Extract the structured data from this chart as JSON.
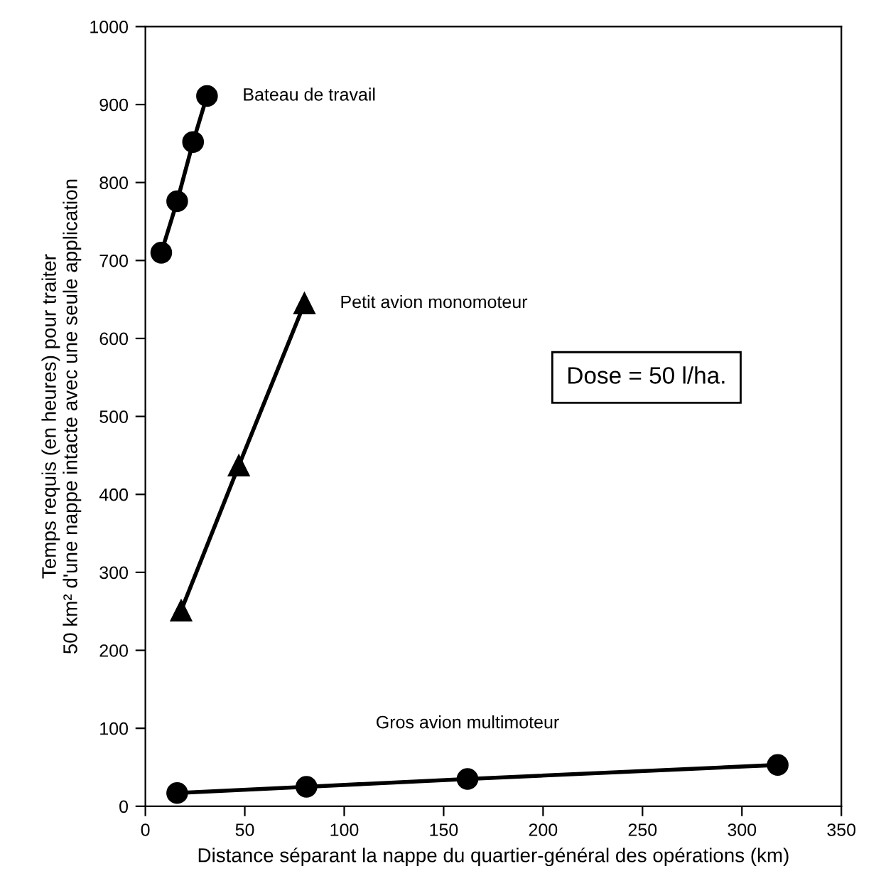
{
  "chart_data": {
    "type": "line",
    "xlabel": "Distance séparant la nappe du quartier-général des opérations (km)",
    "ylabel": "Temps requis (en heures) pour traiter\n50 km² d'une nappe intacte avec une seule application",
    "series": [
      {
        "name": "Bateau de travail",
        "color": "#000000",
        "marker": "circle",
        "x": [
          8,
          16,
          24,
          31
        ],
        "values": [
          710,
          776,
          852,
          911
        ]
      },
      {
        "name": "Petit avion monomoteur",
        "color": "#000000",
        "marker": "triangle",
        "x": [
          18,
          47,
          80
        ],
        "values": [
          251,
          437,
          645
        ]
      },
      {
        "name": "Gros avion multimoteur",
        "color": "#000000",
        "marker": "circle",
        "x": [
          16,
          81,
          162,
          318
        ],
        "values": [
          17,
          25,
          35,
          53
        ]
      }
    ],
    "annotations": [
      "Dose = 50 l/ha."
    ],
    "xlim": [
      0,
      350
    ],
    "xticks": [
      0,
      50,
      100,
      150,
      200,
      250,
      300,
      350
    ],
    "ylim": [
      0,
      1000
    ],
    "yticks": [
      0,
      100,
      200,
      300,
      400,
      500,
      600,
      700,
      800,
      900,
      1000
    ],
    "grid": false,
    "legend": false,
    "line_style": "solid"
  }
}
